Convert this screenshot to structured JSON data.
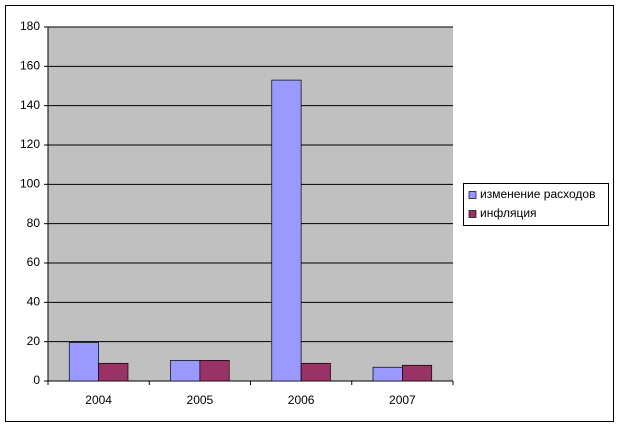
{
  "chart_data": {
    "type": "bar",
    "categories": [
      "2004",
      "2005",
      "2006",
      "2007"
    ],
    "series": [
      {
        "name": "изменение расходов",
        "color": "#9999ff",
        "values": [
          19.5,
          10.5,
          153,
          7
        ]
      },
      {
        "name": "инфляция",
        "color": "#993366",
        "values": [
          9,
          10.5,
          9,
          8
        ]
      }
    ],
    "ylim": [
      0,
      180
    ],
    "yticks": [
      0,
      20,
      40,
      60,
      80,
      100,
      120,
      140,
      160,
      180
    ],
    "grid": true,
    "legend": "right"
  }
}
